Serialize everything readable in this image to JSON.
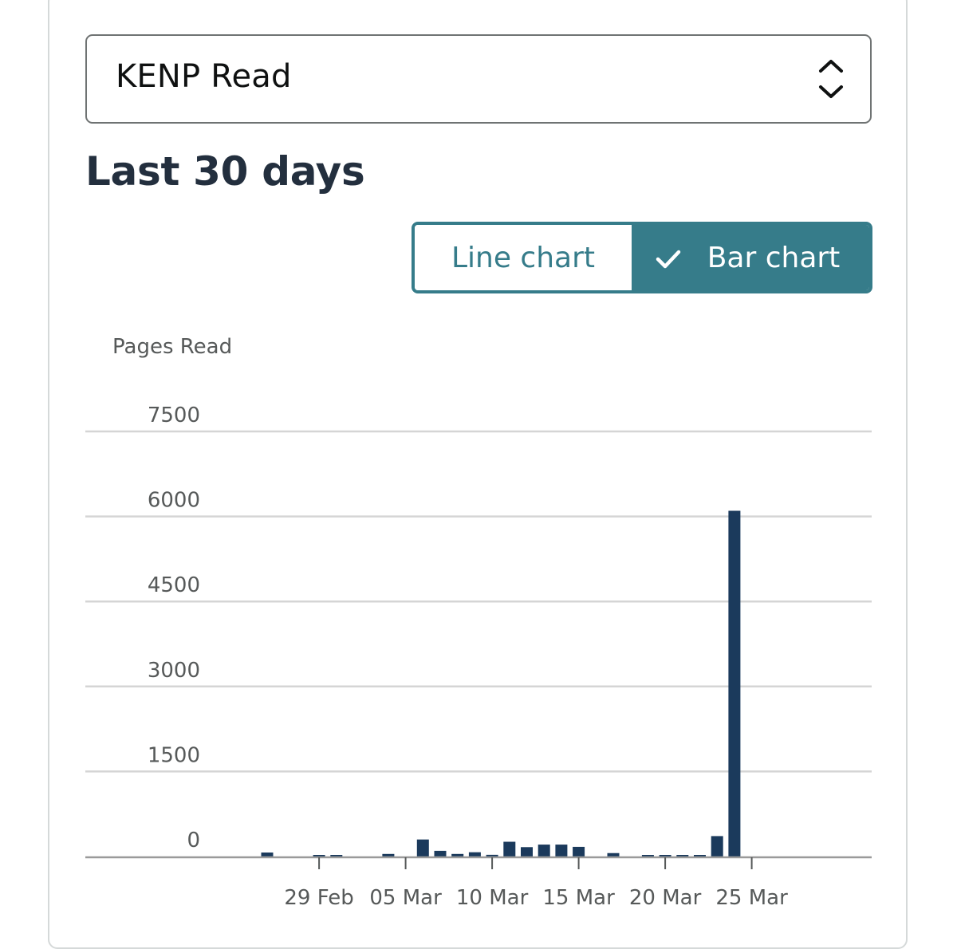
{
  "metric_select": {
    "value": "KENP Read",
    "icon": "up-down-chevron-icon"
  },
  "period_title": "Last 30 days",
  "chart_toggle": {
    "line_label": "Line chart",
    "bar_label": "Bar chart",
    "selected": "bar",
    "check_icon": "checkmark-icon",
    "accent_color": "#367c8a"
  },
  "chart_data": {
    "type": "bar",
    "ylabel": "Pages Read",
    "ylim": [
      0,
      7500
    ],
    "yticks": [
      0,
      1500,
      3000,
      4500,
      6000,
      7500
    ],
    "grid": true,
    "bar_color": "#1b3a5c",
    "categories": [
      "26 Feb",
      "27 Feb",
      "28 Feb",
      "29 Feb",
      "01 Mar",
      "02 Mar",
      "03 Mar",
      "04 Mar",
      "05 Mar",
      "06 Mar",
      "07 Mar",
      "08 Mar",
      "09 Mar",
      "10 Mar",
      "11 Mar",
      "12 Mar",
      "13 Mar",
      "14 Mar",
      "15 Mar",
      "16 Mar",
      "17 Mar",
      "18 Mar",
      "19 Mar",
      "20 Mar",
      "21 Mar",
      "22 Mar",
      "23 Mar",
      "24 Mar",
      "25 Mar"
    ],
    "values": [
      70,
      0,
      0,
      10,
      10,
      0,
      0,
      45,
      0,
      300,
      100,
      45,
      75,
      30,
      260,
      165,
      210,
      210,
      170,
      0,
      60,
      0,
      25,
      25,
      10,
      10,
      360,
      6100,
      0
    ],
    "xtick_labels": [
      "29 Feb",
      "05 Mar",
      "10 Mar",
      "15 Mar",
      "20 Mar",
      "25 Mar"
    ],
    "xtick_positions": [
      "29 Feb",
      "05 Mar",
      "10 Mar",
      "15 Mar",
      "20 Mar",
      "25 Mar"
    ]
  }
}
